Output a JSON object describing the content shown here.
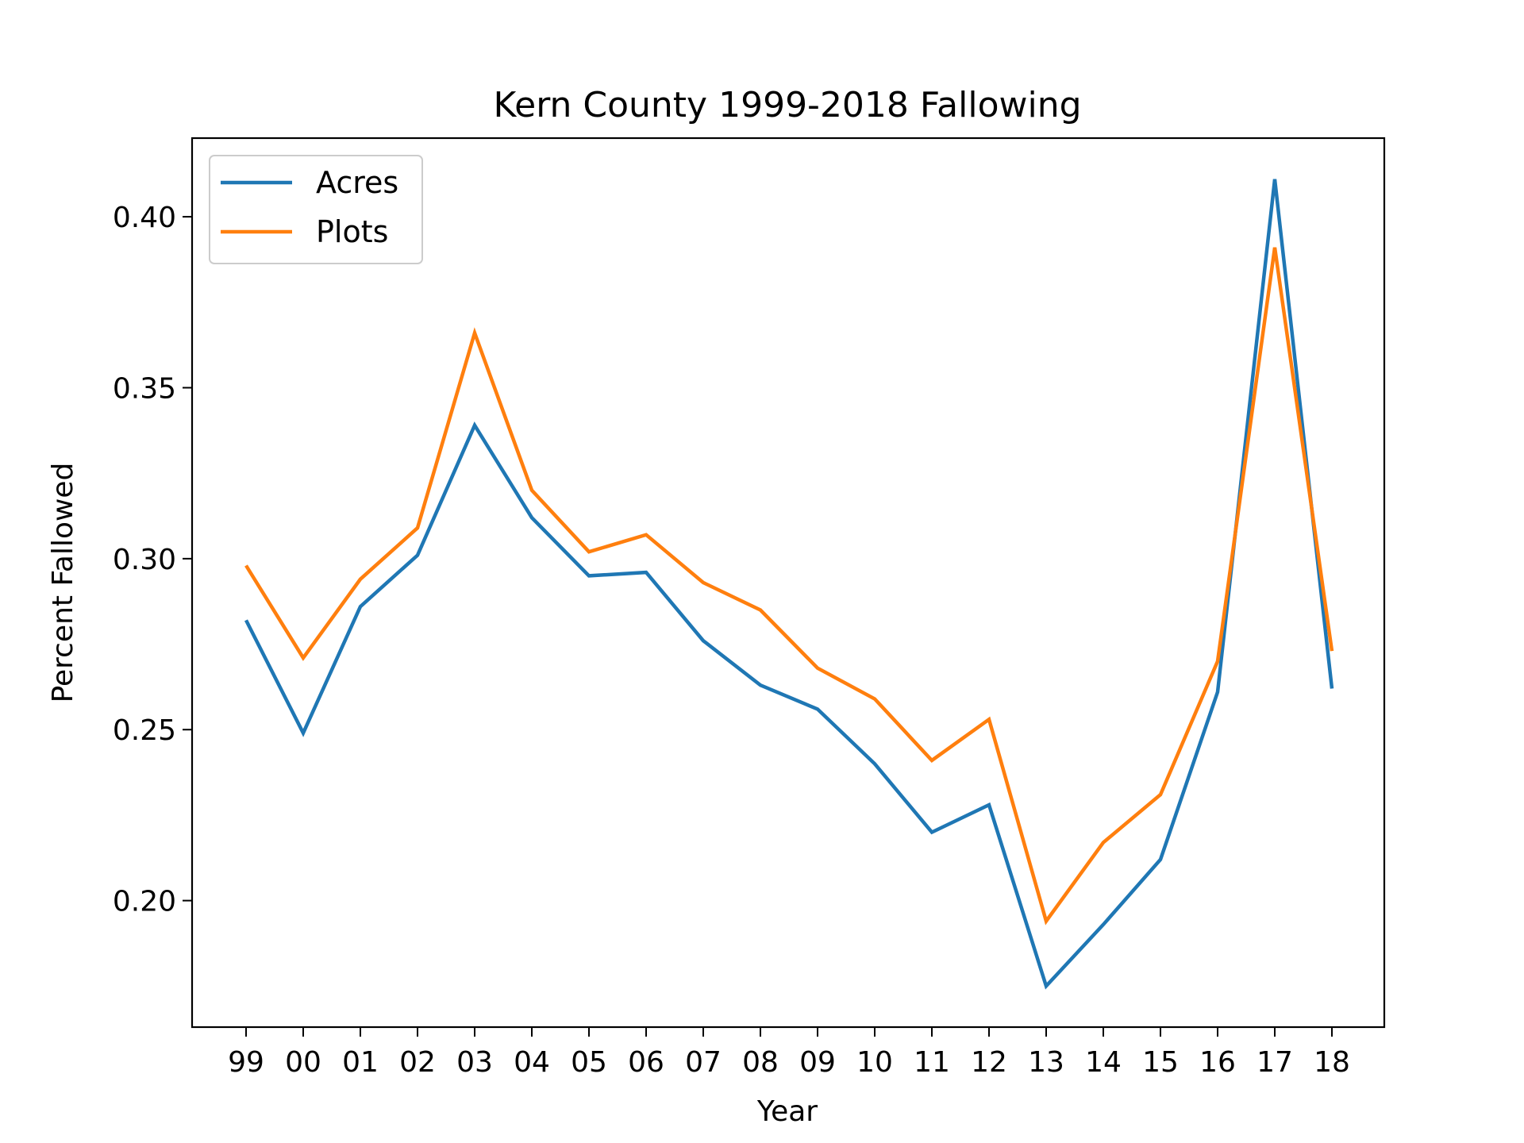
{
  "chart_data": {
    "type": "line",
    "title": "Kern County 1999-2018 Fallowing",
    "xlabel": "Year",
    "ylabel": "Percent Fallowed",
    "categories": [
      "99",
      "00",
      "01",
      "02",
      "03",
      "04",
      "05",
      "06",
      "07",
      "08",
      "09",
      "10",
      "11",
      "12",
      "13",
      "14",
      "15",
      "16",
      "17",
      "18"
    ],
    "ylim": [
      0.163,
      0.423
    ],
    "yticks": [
      "0.20",
      "0.25",
      "0.30",
      "0.35",
      "0.40"
    ],
    "grid": false,
    "legend_position": "upper-left",
    "series": [
      {
        "name": "Acres",
        "color": "#1f77b4",
        "values": [
          0.282,
          0.249,
          0.286,
          0.301,
          0.339,
          0.312,
          0.295,
          0.296,
          0.276,
          0.263,
          0.256,
          0.24,
          0.22,
          0.228,
          0.175,
          0.193,
          0.212,
          0.261,
          0.411,
          0.262
        ]
      },
      {
        "name": "Plots",
        "color": "#ff7f0e",
        "values": [
          0.298,
          0.271,
          0.294,
          0.309,
          0.366,
          0.32,
          0.302,
          0.307,
          0.293,
          0.285,
          0.268,
          0.259,
          0.241,
          0.253,
          0.194,
          0.217,
          0.231,
          0.27,
          0.391,
          0.273
        ]
      }
    ]
  }
}
